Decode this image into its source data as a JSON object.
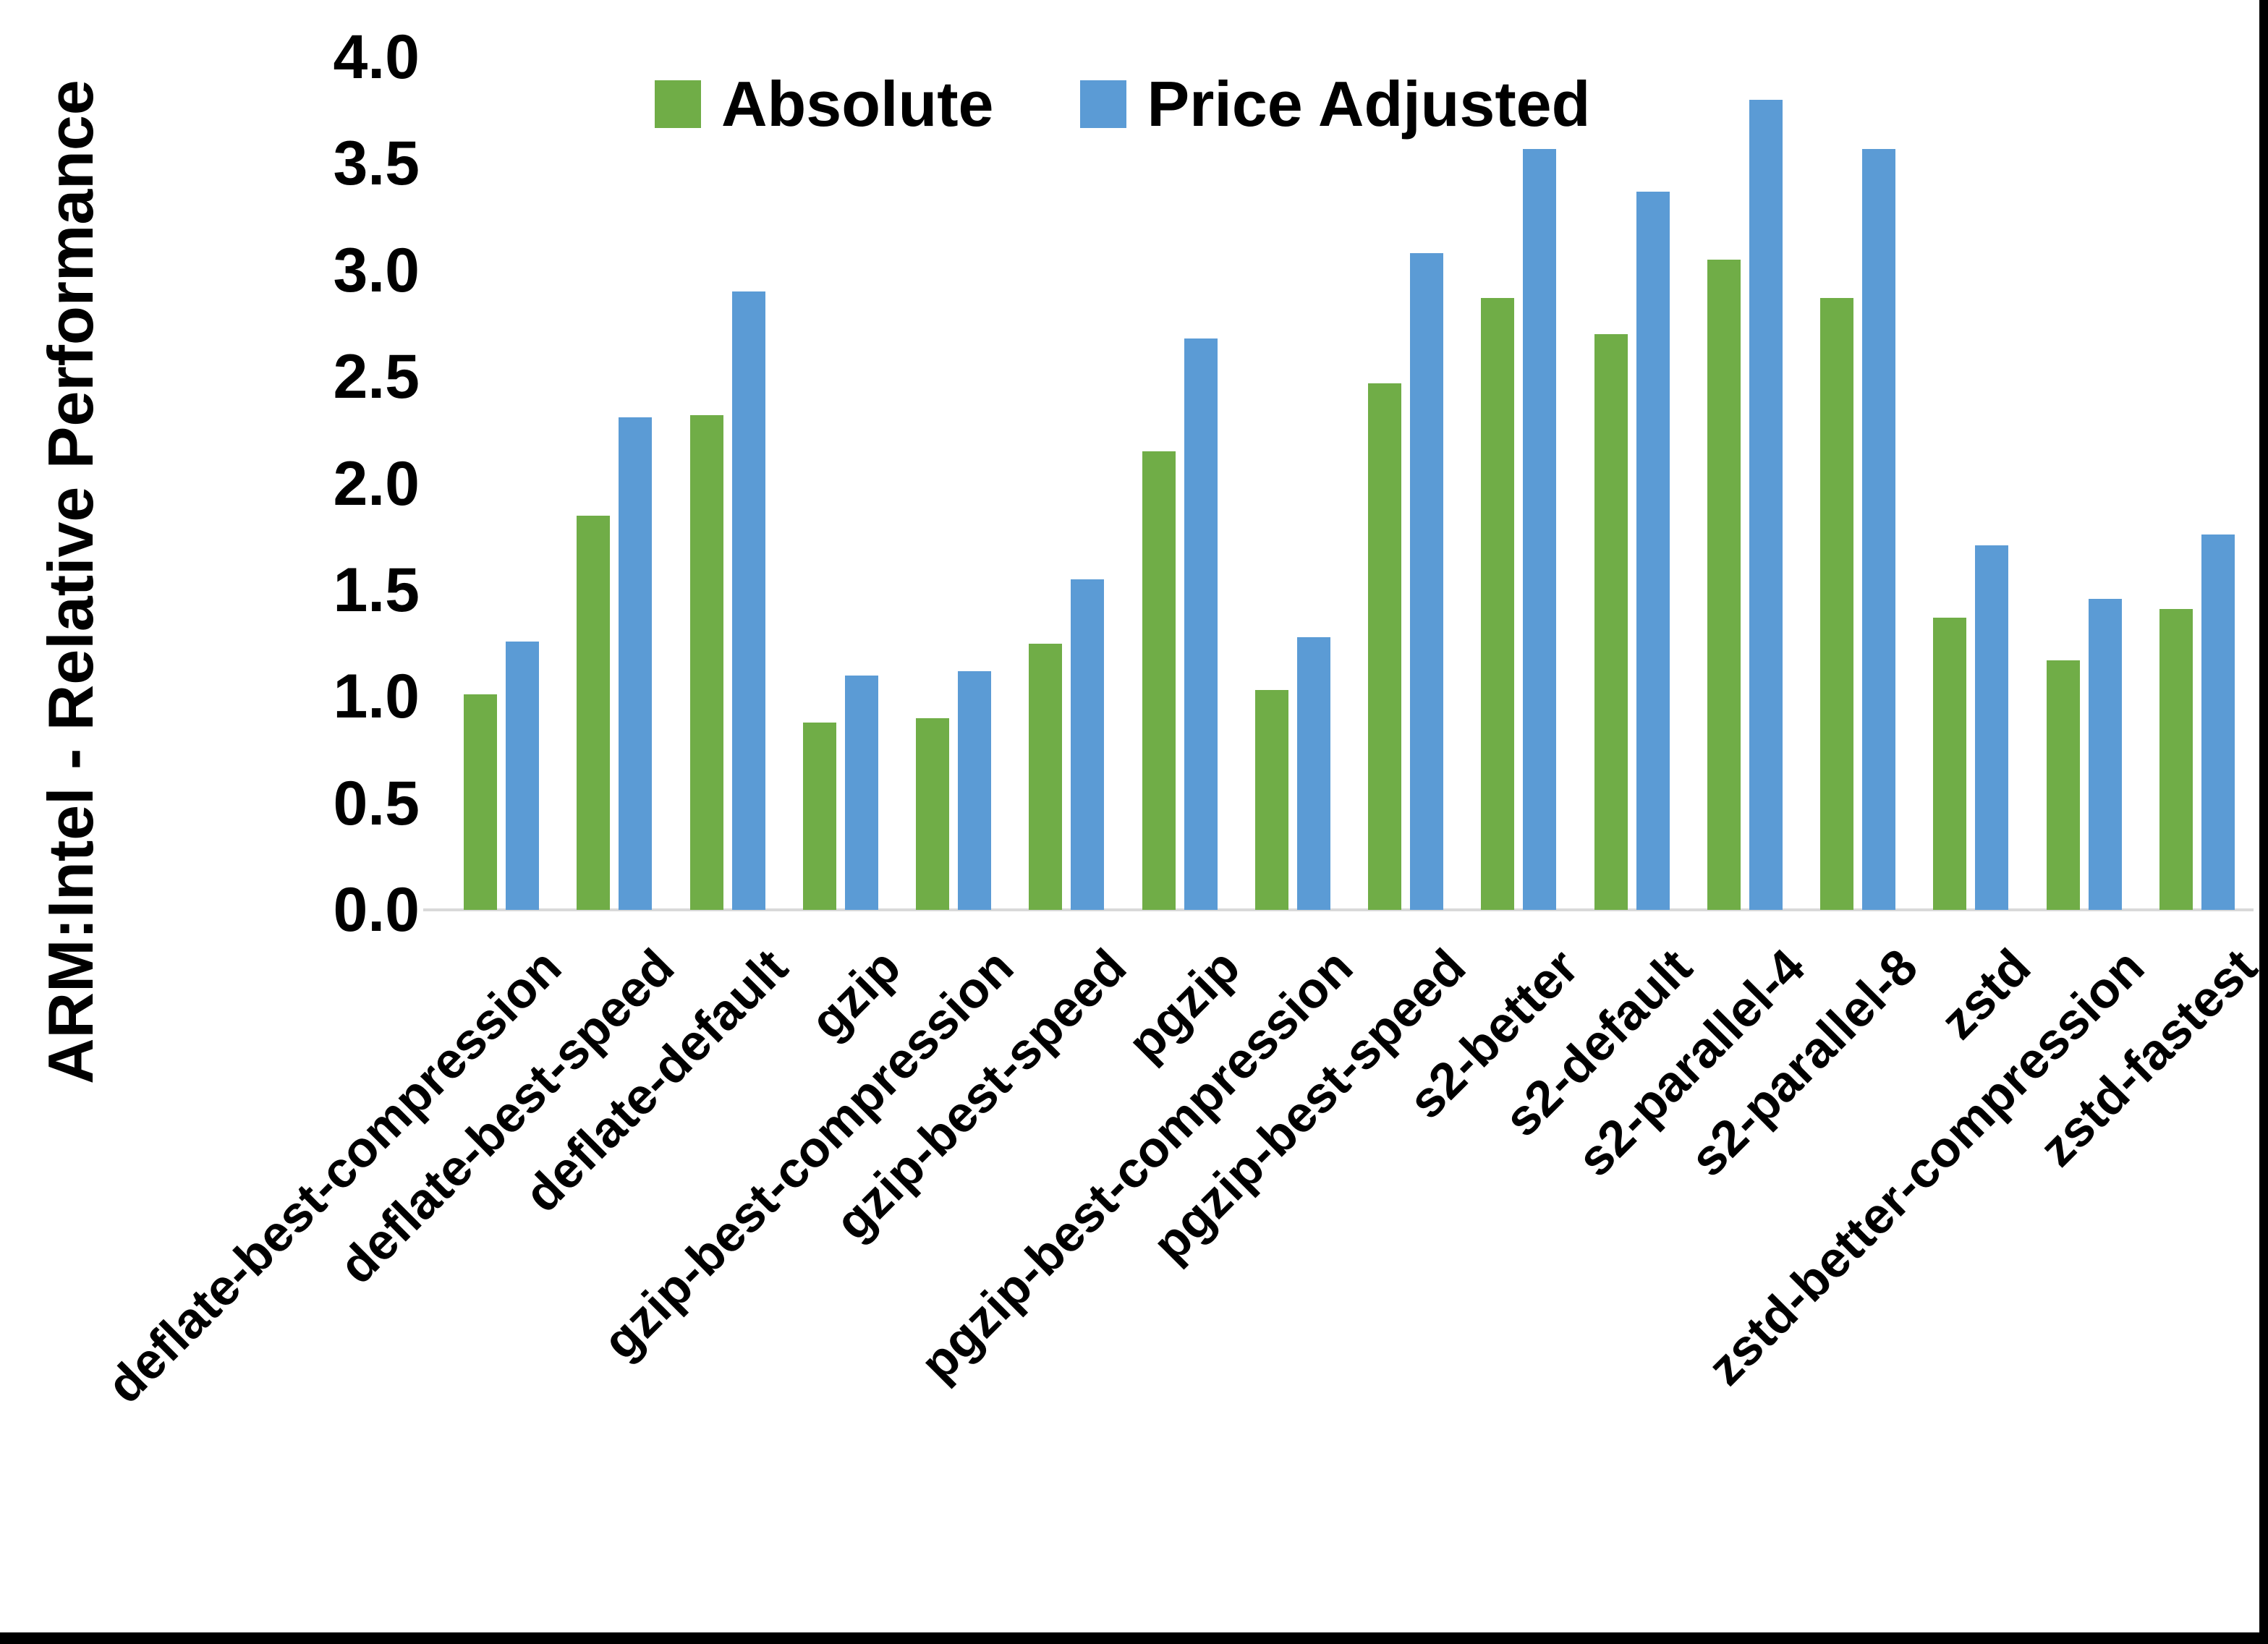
{
  "y_axis": {
    "title": "ARM:Intel - Relative Performance",
    "ticks": [
      "4.0",
      "3.5",
      "3.0",
      "2.5",
      "2.0",
      "1.5",
      "1.0",
      "0.5",
      "0.0"
    ]
  },
  "colors": {
    "absolute_green": "#70AD47",
    "price_adjusted_blue": "#5B9BD5",
    "axis_line": "#D9D9D9",
    "text": "#000000",
    "background": "#FFFFFF",
    "frame_border": "#000000"
  },
  "chart_data": {
    "type": "bar",
    "title": "",
    "xlabel": "",
    "ylabel": "ARM:Intel - Relative Performance",
    "ylim": [
      0.0,
      4.0
    ],
    "ytick_step": 0.5,
    "grid": false,
    "legend_position": "top-center",
    "x_label_rotation_deg": 45,
    "categories": [
      "deflate-best-compression",
      "deflate-best-speed",
      "deflate-default",
      "gzip",
      "gzip-best-compression",
      "gzip-best-speed",
      "pgzip",
      "pgzip-best-compression",
      "pgzip-best-speed",
      "s2-better",
      "s2-default",
      "s2-parallel-4",
      "s2-parallel-8",
      "zstd",
      "zstd-better-compression",
      "zstd-fastest"
    ],
    "series": [
      {
        "name": "Absolute",
        "color": "#70AD47",
        "values": [
          1.01,
          1.85,
          2.32,
          0.88,
          0.9,
          1.25,
          2.15,
          1.03,
          2.47,
          2.87,
          2.7,
          3.05,
          2.87,
          1.37,
          1.17,
          1.41
        ]
      },
      {
        "name": "Price Adjusted",
        "color": "#5B9BD5",
        "values": [
          1.26,
          2.31,
          2.9,
          1.1,
          1.12,
          1.55,
          2.68,
          1.28,
          3.08,
          3.57,
          3.37,
          3.8,
          3.57,
          1.71,
          1.46,
          1.76
        ]
      }
    ]
  }
}
